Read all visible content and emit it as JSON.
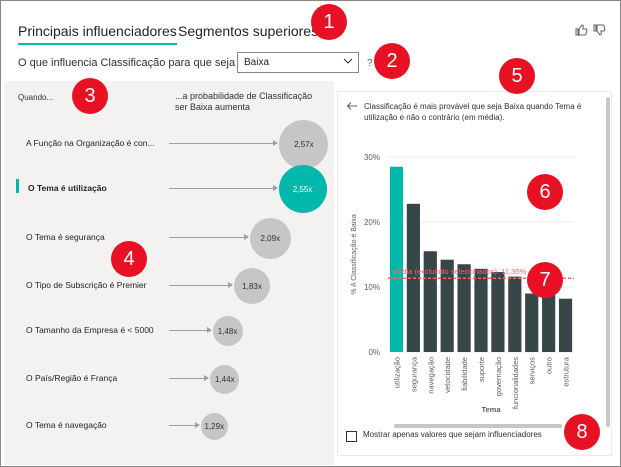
{
  "tabs": [
    {
      "label": "Principais influenciadores",
      "active": true
    },
    {
      "label": "Segmentos superiores",
      "active": false
    }
  ],
  "toolbar": {
    "thumbs_up_icon": "thumbs-up-icon",
    "thumbs_down_icon": "thumbs-down-icon"
  },
  "question": {
    "prefix": "O que influencia Classificação para que seja",
    "selected_value": "Baixa",
    "help": "?"
  },
  "influencers_panel": {
    "col_when": "Quando...",
    "col_prob": "...a probabilidade de Classificação ser Baixa aumenta",
    "items": [
      {
        "label": "A Função na Organização é con...",
        "value": "2,57x",
        "multiplier": 2.57,
        "selected": false
      },
      {
        "label": "O Tema é utilização",
        "value": "2,55x",
        "multiplier": 2.55,
        "selected": true
      },
      {
        "label": "O Tema é segurança",
        "value": "2,09x",
        "multiplier": 2.09,
        "selected": false
      },
      {
        "label": "O Tipo de Subscrição é Premier",
        "value": "1,83x",
        "multiplier": 1.83,
        "selected": false
      },
      {
        "label": "O Tamanho da Empresa é < 5000",
        "value": "1,48x",
        "multiplier": 1.48,
        "selected": false
      },
      {
        "label": "O País/Região é França",
        "value": "1,44x",
        "multiplier": 1.44,
        "selected": false
      },
      {
        "label": "O Tema é navegação",
        "value": "1,29x",
        "multiplier": 1.29,
        "selected": false
      }
    ]
  },
  "detail_panel": {
    "explanation": "Classificação é mais provável que seja Baixa quando Tema é utilização e não o contrário (em média).",
    "checkbox_label": "Mostrar apenas valores que sejam influenciadores"
  },
  "chart_data": {
    "type": "bar",
    "categories": [
      "utilização",
      "segurança",
      "navegação",
      "velocidade",
      "fiabilidade",
      "suporte",
      "governação",
      "funcionalidades",
      "serviços",
      "outro",
      "estrutura"
    ],
    "values": [
      28.5,
      22.8,
      15.5,
      14.2,
      13.5,
      12.8,
      12.3,
      11.6,
      9.0,
      8.8,
      8.2
    ],
    "highlight_index": 0,
    "xlabel": "Tema",
    "ylabel": "% A Classificação é Baixa",
    "yticks": [
      "0%",
      "10%",
      "20%",
      "30%"
    ],
    "ylim": [
      0,
      30
    ],
    "average_line": {
      "value": 11.35,
      "label": "Média (excluindo selecionados): 11,35%"
    },
    "colors": {
      "highlight": "#01b8aa",
      "bar": "#374649",
      "average": "#fd625e"
    }
  },
  "callouts": [
    "1",
    "2",
    "3",
    "4",
    "5",
    "6",
    "7",
    "8"
  ]
}
